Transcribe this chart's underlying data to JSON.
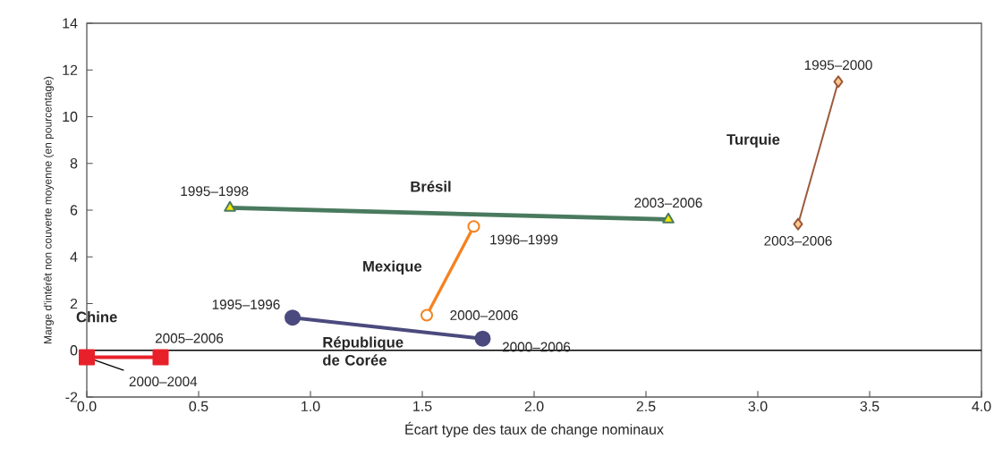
{
  "chart_data": {
    "type": "line",
    "xlabel": "Écart type des taux de change nominaux",
    "ylabel": "Marge d'intérêt non couverte moyenne (en pourcentage)",
    "xlim": [
      0,
      4
    ],
    "ylim": [
      -2,
      14
    ],
    "xticks": [
      {
        "value": 0,
        "label": "0.0"
      },
      {
        "value": 0.5,
        "label": "0.5"
      },
      {
        "value": 1,
        "label": "1.0"
      },
      {
        "value": 1.5,
        "label": "1.5"
      },
      {
        "value": 2,
        "label": "2.0"
      },
      {
        "value": 2.5,
        "label": "2.5"
      },
      {
        "value": 3,
        "label": "3.0"
      },
      {
        "value": 3.5,
        "label": "3.5"
      },
      {
        "value": 4,
        "label": "4.0"
      }
    ],
    "yticks": [
      -2,
      0,
      2,
      4,
      6,
      8,
      10,
      12,
      14
    ],
    "grid": false,
    "ref_lines": [
      {
        "axis": "y",
        "value": 0,
        "color": "#000000"
      }
    ],
    "series": [
      {
        "name": "Chine",
        "color": "#e8202a",
        "marker": "square",
        "x": [
          0.0,
          0.33
        ],
        "values": [
          -0.3,
          -0.3
        ]
      },
      {
        "name": "République de Corée",
        "color": "#4b4a7e",
        "marker": "circle",
        "x": [
          0.92,
          1.77
        ],
        "values": [
          1.4,
          0.5
        ]
      },
      {
        "name": "Mexique",
        "color": "#f58220",
        "marker": "circle",
        "x": [
          1.52,
          1.73
        ],
        "values": [
          1.5,
          5.3
        ]
      },
      {
        "name": "Brésil",
        "color": "#4a7a5e",
        "marker": "triangle",
        "x": [
          0.64,
          2.6
        ],
        "values": [
          6.1,
          5.6
        ]
      },
      {
        "name": "Turquie",
        "color": "#9b5a3c",
        "marker": "diamond",
        "x": [
          3.18,
          3.36
        ],
        "values": [
          5.4,
          11.5
        ]
      }
    ],
    "annotations": [
      {
        "text": "2000–2004",
        "x": 0.0,
        "y": -0.3
      },
      {
        "text": "2005–2006",
        "x": 0.33,
        "y": -0.3
      },
      {
        "text": "1995–1996",
        "x": 0.92,
        "y": 1.4
      },
      {
        "text": "2000–2006",
        "x": 1.77,
        "y": 0.5
      },
      {
        "text": "2000–2006",
        "x": 1.52,
        "y": 1.5
      },
      {
        "text": "1996–1999",
        "x": 1.73,
        "y": 5.3
      },
      {
        "text": "1995–1998",
        "x": 0.64,
        "y": 6.1
      },
      {
        "text": "2003–2006",
        "x": 2.6,
        "y": 5.6
      },
      {
        "text": "1995–2000",
        "x": 3.36,
        "y": 11.5
      },
      {
        "text": "2003–2006",
        "x": 3.18,
        "y": 5.4
      }
    ]
  }
}
